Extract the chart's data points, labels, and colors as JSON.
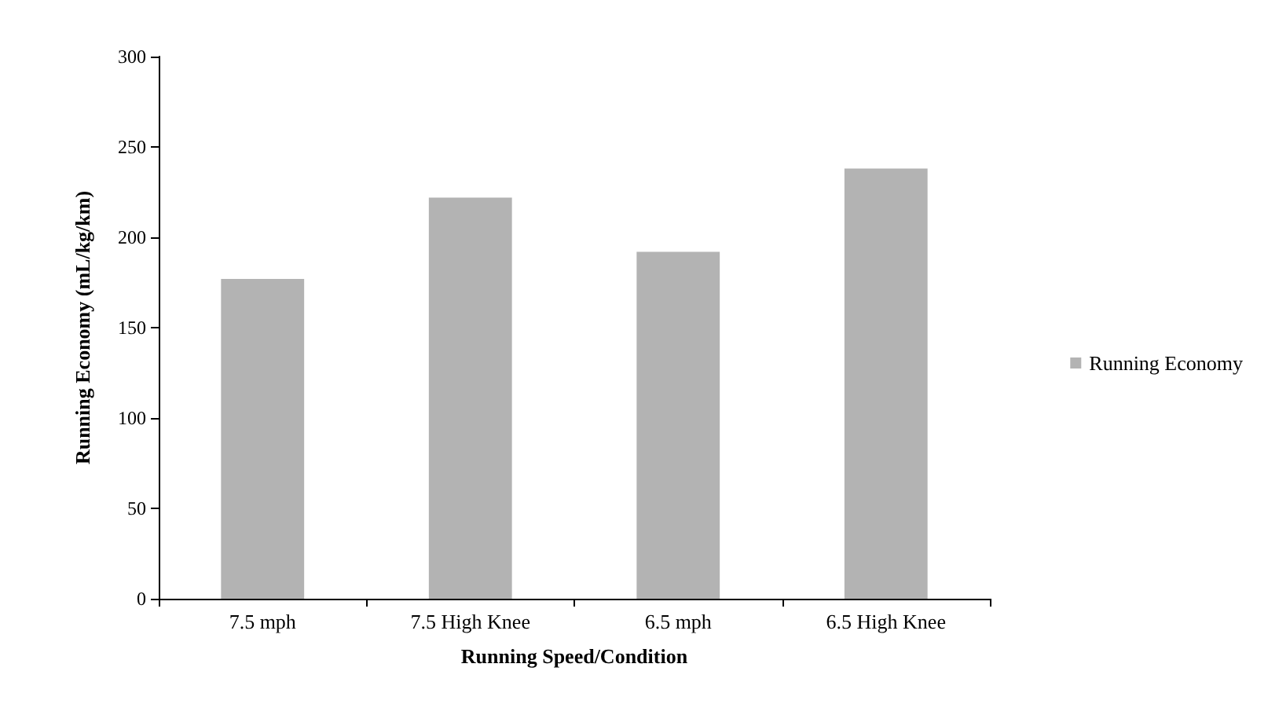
{
  "chart_data": {
    "type": "bar",
    "xlabel": "Running Speed/Condition",
    "ylabel": "Running Economy (mL/kg/km)",
    "categories": [
      "7.5 mph",
      "7.5 High Knee",
      "6.5 mph",
      "6.5 High Knee"
    ],
    "series": [
      {
        "name": "Running Economy",
        "color": "#b3b3b3",
        "values": [
          177,
          222,
          192,
          238
        ]
      }
    ],
    "ylim": [
      0,
      300
    ],
    "yticks": [
      0,
      50,
      100,
      150,
      200,
      250,
      300
    ],
    "grid": false,
    "legend": "right"
  }
}
